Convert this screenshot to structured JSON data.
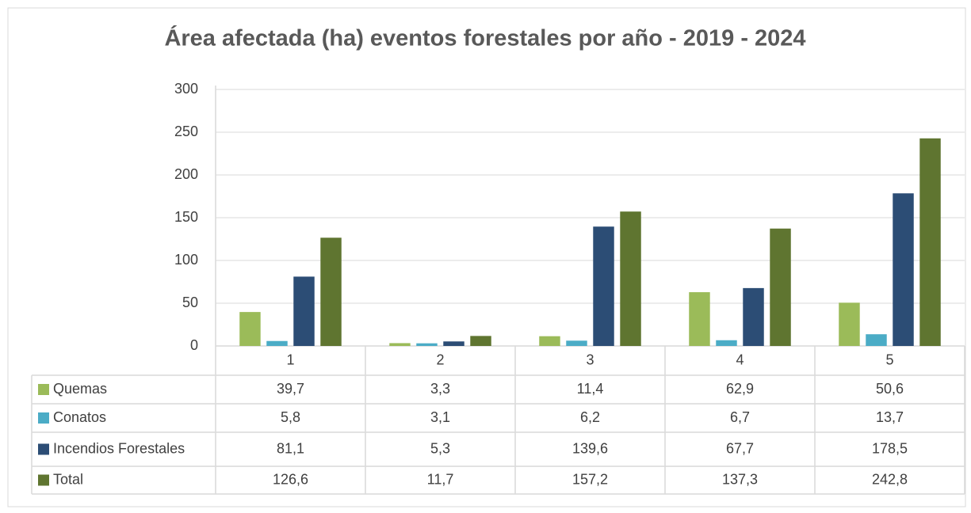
{
  "chart_data": {
    "type": "bar",
    "title": "Área afectada (ha) eventos forestales por año - 2019 - 2024",
    "categories": [
      "1",
      "2",
      "3",
      "4",
      "5"
    ],
    "series": [
      {
        "name": "Quemas",
        "color": "#9bbb59",
        "values": [
          39.7,
          3.3,
          11.4,
          62.9,
          50.6
        ],
        "value_labels": [
          "39,7",
          "3,3",
          "11,4",
          "62,9",
          "50,6"
        ]
      },
      {
        "name": "Conatos",
        "color": "#4bacc6",
        "values": [
          5.8,
          3.1,
          6.2,
          6.7,
          13.7
        ],
        "value_labels": [
          "5,8",
          "3,1",
          "6,2",
          "6,7",
          "13,7"
        ]
      },
      {
        "name": "Incendios Forestales",
        "color": "#2c4d75",
        "values": [
          81.1,
          5.3,
          139.6,
          67.7,
          178.5
        ],
        "value_labels": [
          "81,1",
          "5,3",
          "139,6",
          "67,7",
          "178,5"
        ]
      },
      {
        "name": "Total",
        "color": "#5f7530",
        "values": [
          126.6,
          11.7,
          157.2,
          137.3,
          242.8
        ],
        "value_labels": [
          "126,6",
          "11,7",
          "157,2",
          "137,3",
          "242,8"
        ]
      }
    ],
    "ylim": [
      0,
      300
    ],
    "yticks": [
      0,
      50,
      100,
      150,
      200,
      250,
      300
    ],
    "grid": true
  }
}
